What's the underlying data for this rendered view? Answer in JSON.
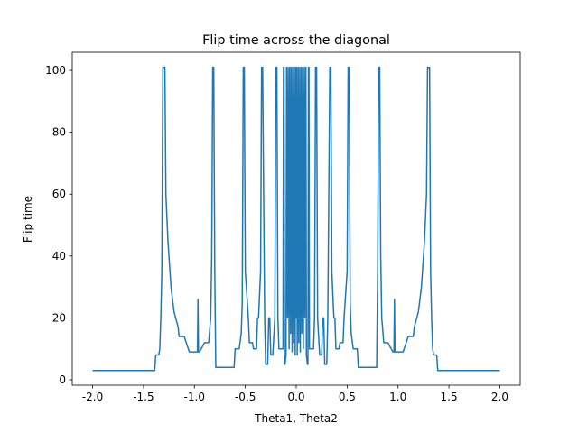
{
  "chart_data": {
    "type": "line",
    "title": "Flip time across the diagonal",
    "x_label": "Theta1, Theta2",
    "y_label": "Flip time",
    "x": [
      -2.0,
      -1.39,
      -1.38,
      -1.35,
      -1.34,
      -1.33,
      -1.32,
      -1.31,
      -1.29,
      -1.28,
      -1.26,
      -1.23,
      -1.2,
      -1.16,
      -1.15,
      -1.1,
      -1.05,
      -0.97,
      -0.965,
      -0.96,
      -0.95,
      -0.9,
      -0.86,
      -0.84,
      -0.83,
      -0.82,
      -0.81,
      -0.8,
      -0.79,
      -0.61,
      -0.6,
      -0.56,
      -0.54,
      -0.53,
      -0.52,
      -0.51,
      -0.5,
      -0.47,
      -0.46,
      -0.43,
      -0.42,
      -0.39,
      -0.38,
      -0.37,
      -0.35,
      -0.34,
      -0.33,
      -0.31,
      -0.3,
      -0.28,
      -0.27,
      -0.26,
      -0.25,
      -0.23,
      -0.21,
      -0.2,
      -0.19,
      -0.18,
      -0.17,
      -0.13,
      -0.125,
      -0.12,
      -0.115,
      -0.11,
      -0.1,
      -0.095,
      -0.085,
      -0.08,
      -0.07,
      -0.065,
      -0.055,
      -0.05,
      -0.04,
      -0.035,
      -0.025,
      -0.02,
      -0.01,
      -0.005,
      0,
      0.005,
      0.01,
      0.02,
      0.025,
      0.035,
      0.04,
      0.05,
      0.055,
      0.065,
      0.07,
      0.08,
      0.085,
      0.095,
      0.1,
      0.11,
      0.115,
      0.12,
      0.125,
      0.13,
      0.17,
      0.18,
      0.19,
      0.2,
      0.21,
      0.23,
      0.25,
      0.26,
      0.27,
      0.28,
      0.3,
      0.31,
      0.33,
      0.34,
      0.35,
      0.37,
      0.38,
      0.39,
      0.42,
      0.43,
      0.46,
      0.47,
      0.5,
      0.51,
      0.52,
      0.53,
      0.54,
      0.56,
      0.6,
      0.61,
      0.79,
      0.8,
      0.81,
      0.82,
      0.83,
      0.84,
      0.86,
      0.9,
      0.95,
      0.96,
      0.965,
      0.97,
      1.05,
      1.1,
      1.15,
      1.16,
      1.2,
      1.23,
      1.26,
      1.28,
      1.29,
      1.31,
      1.32,
      1.33,
      1.34,
      1.35,
      1.38,
      1.39,
      2.0
    ],
    "series": [
      {
        "color": "#1f77b4",
        "values": [
          3,
          3,
          8,
          8,
          10,
          20,
          35,
          101,
          101,
          60,
          45,
          30,
          22,
          17,
          14,
          14,
          9,
          9,
          26,
          9,
          9,
          12,
          12,
          20,
          40,
          101,
          101,
          35,
          4,
          4,
          10,
          10,
          15,
          25,
          101,
          101,
          35,
          20,
          12,
          12,
          10,
          10,
          20,
          20,
          35,
          101,
          101,
          20,
          5,
          5,
          20,
          20,
          8,
          8,
          20,
          101,
          101,
          20,
          10,
          10,
          101,
          101,
          5,
          5,
          8,
          101,
          20,
          101,
          10,
          101,
          15,
          101,
          9,
          101,
          12,
          101,
          8,
          101,
          20,
          101,
          8,
          101,
          12,
          101,
          9,
          101,
          15,
          101,
          10,
          101,
          20,
          101,
          8,
          5,
          5,
          101,
          101,
          10,
          10,
          20,
          101,
          101,
          20,
          8,
          8,
          20,
          20,
          5,
          5,
          20,
          101,
          101,
          35,
          20,
          20,
          10,
          10,
          12,
          12,
          20,
          35,
          101,
          101,
          25,
          15,
          10,
          10,
          4,
          4,
          35,
          101,
          101,
          40,
          20,
          12,
          12,
          9,
          9,
          26,
          9,
          9,
          14,
          14,
          17,
          22,
          30,
          45,
          60,
          101,
          101,
          35,
          20,
          10,
          8,
          8,
          3,
          3
        ]
      }
    ],
    "xlim": [
      -2.2,
      2.2
    ],
    "ylim": [
      -1.75,
      105.85
    ],
    "xticks": [
      {
        "value": -2,
        "label": "-2.0"
      },
      {
        "value": -1.5,
        "label": "-1.5"
      },
      {
        "value": -1,
        "label": "-1.0"
      },
      {
        "value": -0.5,
        "label": "-0.5"
      },
      {
        "value": 0,
        "label": "0.0"
      },
      {
        "value": 0.5,
        "label": "0.5"
      },
      {
        "value": 1,
        "label": "1.0"
      },
      {
        "value": 1.5,
        "label": "1.5"
      },
      {
        "value": 2,
        "label": "2.0"
      }
    ],
    "yticks": [
      0,
      20,
      40,
      60,
      80,
      100
    ]
  }
}
